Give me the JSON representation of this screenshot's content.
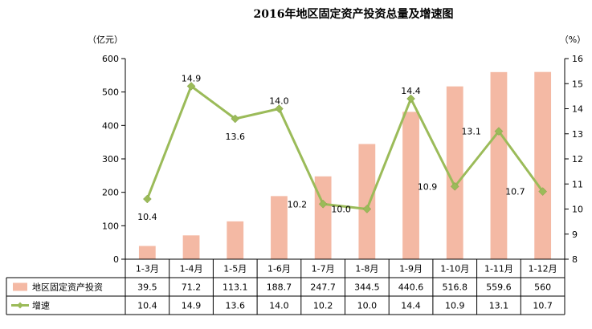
{
  "chart_data": {
    "type": "bar+line",
    "title": "2016年地区固定资产投资总量及增速图",
    "left_unit": "（亿元）",
    "right_unit": "（%）",
    "categories": [
      "1-3月",
      "1-4月",
      "1-5月",
      "1-6月",
      "1-7月",
      "1-8月",
      "1-9月",
      "1-10月",
      "1-11月",
      "1-12月"
    ],
    "series": [
      {
        "name": "地区固定资产投资",
        "type": "bar",
        "axis": "left",
        "color": "#f4b9a4",
        "values": [
          39.5,
          71.2,
          113.1,
          188.7,
          247.7,
          344.5,
          440.6,
          516.8,
          559.6,
          560
        ],
        "table_values": [
          "39.5",
          "71.2",
          "113.1",
          "188.7",
          "247.7",
          "344.5",
          "440.6",
          "516.8",
          "559.6",
          "560"
        ]
      },
      {
        "name": "增速",
        "type": "line",
        "axis": "right",
        "color": "#9bbb59",
        "values": [
          10.4,
          14.9,
          13.6,
          14.0,
          10.2,
          10.0,
          14.4,
          10.9,
          13.1,
          10.7
        ],
        "table_values": [
          "10.4",
          "14.9",
          "13.6",
          "14.0",
          "10.2",
          "10.0",
          "14.4",
          "10.9",
          "13.1",
          "10.7"
        ]
      }
    ],
    "left_axis": {
      "min": 0,
      "max": 600,
      "ticks": [
        "0",
        "100",
        "200",
        "300",
        "400",
        "500",
        "600"
      ]
    },
    "right_axis": {
      "min": 8,
      "max": 16,
      "ticks": [
        "8",
        "9",
        "10",
        "11",
        "12",
        "13",
        "14",
        "15",
        "16"
      ]
    },
    "grid": false,
    "legend": "data-table"
  }
}
